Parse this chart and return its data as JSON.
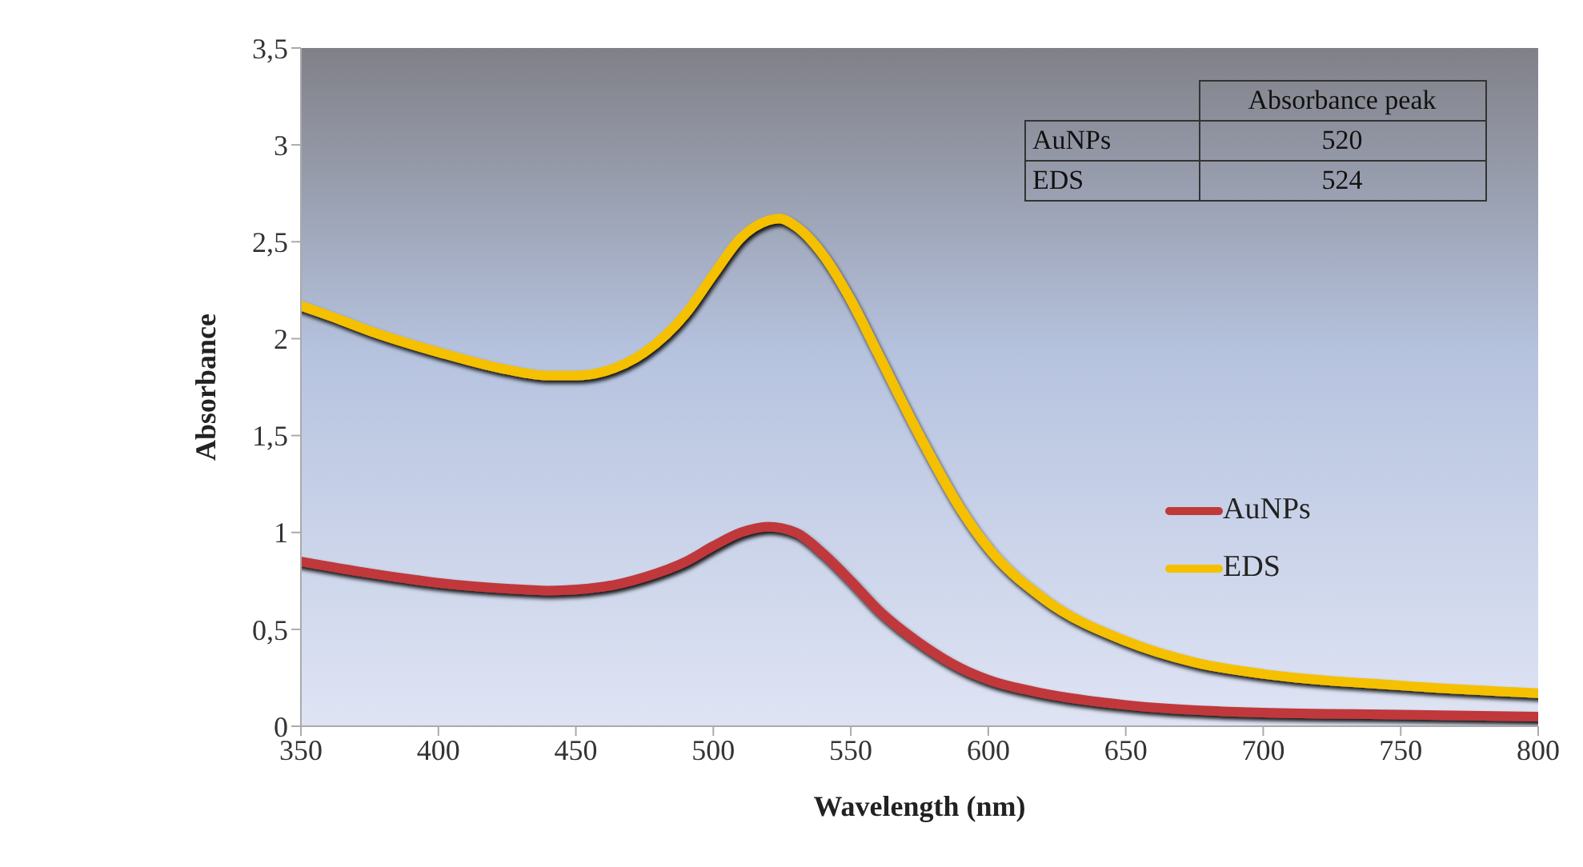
{
  "chart_data": {
    "type": "line",
    "xlabel": "Wavelength (nm)",
    "ylabel": "Absorbance",
    "annotations": [
      "Absorbance peak",
      "AuNPs",
      "520",
      "EDS",
      "524"
    ],
    "series": [
      {
        "name": "AuNPs",
        "color": "#c0393b",
        "x": [
          350,
          375,
          400,
          425,
          440,
          460,
          475,
          490,
          500,
          510,
          520,
          530,
          540,
          550,
          560,
          575,
          590,
          600,
          620,
          650,
          700,
          750,
          800
        ],
        "values": [
          0.85,
          0.79,
          0.74,
          0.71,
          0.7,
          0.72,
          0.77,
          0.85,
          0.93,
          1.0,
          1.03,
          1.0,
          0.89,
          0.75,
          0.6,
          0.43,
          0.3,
          0.24,
          0.17,
          0.11,
          0.07,
          0.06,
          0.05
        ]
      },
      {
        "name": "EDS",
        "color": "#f5c000",
        "x": [
          350,
          360,
          375,
          400,
          425,
          440,
          450,
          460,
          475,
          490,
          500,
          510,
          520,
          524,
          530,
          540,
          550,
          560,
          575,
          590,
          600,
          620,
          650,
          675,
          700,
          750,
          800
        ],
        "values": [
          2.17,
          2.12,
          2.04,
          1.93,
          1.84,
          1.81,
          1.81,
          1.83,
          1.93,
          2.13,
          2.33,
          2.52,
          2.61,
          2.62,
          2.58,
          2.43,
          2.2,
          1.92,
          1.5,
          1.12,
          0.92,
          0.66,
          0.44,
          0.33,
          0.27,
          0.21,
          0.17
        ]
      }
    ],
    "xlim": [
      350,
      800
    ],
    "xticks": [
      350,
      400,
      450,
      500,
      550,
      600,
      650,
      700,
      750,
      800
    ],
    "ylim": [
      0,
      3.5
    ],
    "yticks": [
      0,
      {
        "value": 0.5,
        "label": "0,5"
      },
      1,
      {
        "value": 1.5,
        "label": "1,5"
      },
      2,
      {
        "value": 2.5,
        "label": "2,5"
      },
      3,
      {
        "value": 3.5,
        "label": "3,5"
      }
    ],
    "grid": false,
    "legend": "right",
    "marker": "none",
    "line_style": "solid"
  }
}
